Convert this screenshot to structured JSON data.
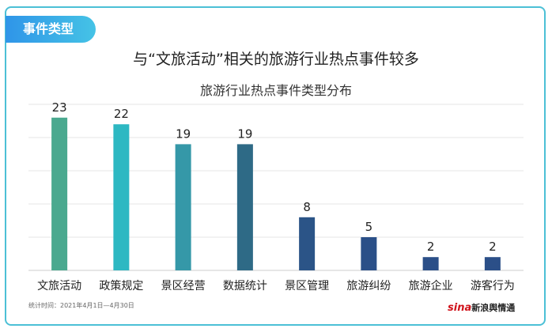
{
  "tag": "事件类型",
  "headline": "与“文旅活动”相关的旅游行业热点事件较多",
  "footer": "统计时间：2021年4月1日—4月30日",
  "logo": {
    "brand": "sina",
    "text": "新浪舆情通"
  },
  "chart_data": {
    "type": "bar",
    "title": "旅游行业热点事件类型分布",
    "categories": [
      "文旅活动",
      "政策规定",
      "景区经营",
      "数据统计",
      "景区管理",
      "旅游纠纷",
      "旅游企业",
      "游客行为"
    ],
    "values": [
      23,
      22,
      19,
      19,
      8,
      5,
      2,
      2
    ],
    "colors": [
      "#4aa98f",
      "#2db8c2",
      "#3598a8",
      "#2e6a86",
      "#2b5487",
      "#2b5088",
      "#2b4f88",
      "#2b4f88"
    ],
    "ylim": [
      0,
      25
    ],
    "grid": true,
    "xlabel": "",
    "ylabel": ""
  }
}
